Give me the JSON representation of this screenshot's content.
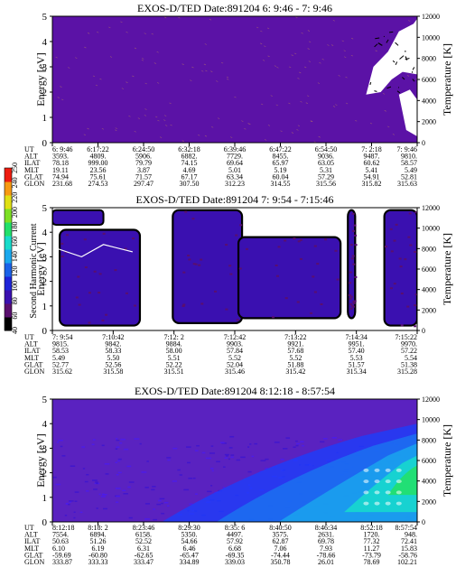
{
  "chart_data": [
    {
      "type": "heatmap",
      "title": "EXOS-D/TED   Date:891204  6: 9:46 - 7: 9:46",
      "ylabel": "Energy [eV]",
      "ylabel_right": "Temperature [K]",
      "ylim": [
        0,
        5
      ],
      "ylim_right": [
        0,
        12000
      ],
      "yticks": [
        "0",
        "1",
        "2",
        "3",
        "4",
        "5"
      ],
      "yticks_right": [
        "0",
        "2000",
        "4000",
        "6000",
        "8000",
        "10000",
        "12000"
      ],
      "fill": "#5b12a6",
      "pattern": "orbit1",
      "rows": [
        {
          "name": "UT",
          "values": [
            "6: 9:46",
            "6:17:22",
            "6:24:50",
            "6:32:18",
            "6:39:46",
            "6:47:22",
            "6:54:50",
            "7: 2:18",
            "7: 9:46"
          ]
        },
        {
          "name": "ALT",
          "values": [
            "3593.",
            "4809.",
            "5906.",
            "6882.",
            "7729.",
            "8455.",
            "9036.",
            "9487.",
            "9810."
          ]
        },
        {
          "name": "ILAT",
          "values": [
            "78.18",
            "999.00",
            "79.79",
            "74.15",
            "69.64",
            "65.97",
            "63.05",
            "60.62",
            "58.57"
          ]
        },
        {
          "name": "MLT",
          "values": [
            "19.11",
            "23.56",
            "3.87",
            "4.69",
            "5.01",
            "5.19",
            "5.31",
            "5.41",
            "5.49"
          ]
        },
        {
          "name": "GLAT",
          "values": [
            "74.94",
            "75.61",
            "71.57",
            "67.17",
            "63.34",
            "60.04",
            "57.29",
            "54.91",
            "52.81"
          ]
        },
        {
          "name": "GLON",
          "values": [
            "231.68",
            "274.53",
            "297.47",
            "307.50",
            "312.23",
            "314.55",
            "315.56",
            "315.82",
            "315.63"
          ]
        }
      ]
    },
    {
      "type": "heatmap",
      "title": "EXOS-D/TED   Date:891204  7: 9:54 - 7:15:46",
      "ylabel": "Energy [eV]",
      "ylabel_right": "Temperature [K]",
      "ylim": [
        0,
        5
      ],
      "ylim_right": [
        0,
        12000
      ],
      "yticks": [
        "0",
        "1",
        "2",
        "3",
        "4",
        "5"
      ],
      "yticks_right": [
        "0",
        "2000",
        "4000",
        "6000",
        "8000",
        "10000",
        "12000"
      ],
      "fill": "#ffffff",
      "pattern": "orbit2",
      "colorbar": {
        "label": "Second Harmonic Current",
        "ticks": [
          "40",
          "60",
          "80",
          "100",
          "120",
          "140",
          "160",
          "180",
          "200",
          "220",
          "240",
          "250"
        ],
        "colors": [
          "#000000",
          "#5a0f6e",
          "#3a10b0",
          "#1e24d8",
          "#1a62e8",
          "#1aa8ee",
          "#18dccb",
          "#22e06a",
          "#7de024",
          "#e0e014",
          "#f79a12",
          "#ee1c10"
        ]
      },
      "rows": [
        {
          "name": "UT",
          "values": [
            "7: 9:54",
            "7:10:42",
            "7:12: 2",
            "7:12:42",
            "7:13:22",
            "7:14:34",
            "7:15:22"
          ]
        },
        {
          "name": "ALT",
          "values": [
            "9815.",
            "9842.",
            "9884.",
            "9903.",
            "9921.",
            "9951.",
            "9970."
          ]
        },
        {
          "name": "ILAT",
          "values": [
            "58.53",
            "58.33",
            "58.00",
            "57.84",
            "57.68",
            "57.40",
            "57.22"
          ]
        },
        {
          "name": "MLT",
          "values": [
            "5.49",
            "5.50",
            "5.51",
            "5.52",
            "5.52",
            "5.53",
            "5.54"
          ]
        },
        {
          "name": "GLAT",
          "values": [
            "52.77",
            "52.56",
            "52.22",
            "52.04",
            "51.88",
            "51.57",
            "51.38"
          ]
        },
        {
          "name": "GLON",
          "values": [
            "315.62",
            "315.58",
            "315.51",
            "315.46",
            "315.42",
            "315.34",
            "315.28"
          ]
        }
      ]
    },
    {
      "type": "heatmap",
      "title": "EXOS-D/TED   Date:891204  8:12:18 - 8:57:54",
      "ylabel": "Energy [eV]",
      "ylabel_right": "Temperature [K]",
      "ylim": [
        0,
        5
      ],
      "ylim_right": [
        0,
        12000
      ],
      "yticks": [
        "0",
        "1",
        "2",
        "3",
        "4",
        "5"
      ],
      "yticks_right": [
        "0",
        "2000",
        "4000",
        "6000",
        "8000",
        "10000",
        "12000"
      ],
      "fill": "#5a22c0",
      "pattern": "orbit3",
      "rows": [
        {
          "name": "UT",
          "values": [
            "8:12:18",
            "8:18: 2",
            "8:23:46",
            "8:29:30",
            "8:35: 6",
            "8:40:50",
            "8:46:34",
            "8:52:18",
            "8:57:54"
          ]
        },
        {
          "name": "ALT",
          "values": [
            "7554.",
            "6894.",
            "6158.",
            "5350.",
            "4497.",
            "3575.",
            "2631.",
            "1720.",
            "948."
          ]
        },
        {
          "name": "ILAT",
          "values": [
            "50.63",
            "51.26",
            "52.52",
            "54.66",
            "57.92",
            "62.87",
            "69.78",
            "77.32",
            "72.41"
          ]
        },
        {
          "name": "MLT",
          "values": [
            "6.10",
            "6.19",
            "6.31",
            "6.46",
            "6.68",
            "7.06",
            "7.93",
            "11.27",
            "15.83"
          ]
        },
        {
          "name": "GLAT",
          "values": [
            "-59.69",
            "-60.80",
            "-62.65",
            "-65.47",
            "-69.35",
            "-74.44",
            "-78.66",
            "-73.79",
            "-58.76"
          ]
        },
        {
          "name": "GLON",
          "values": [
            "333.87",
            "333.33",
            "333.47",
            "334.89",
            "339.03",
            "350.78",
            "26.01",
            "78.69",
            "102.21"
          ]
        }
      ]
    }
  ]
}
